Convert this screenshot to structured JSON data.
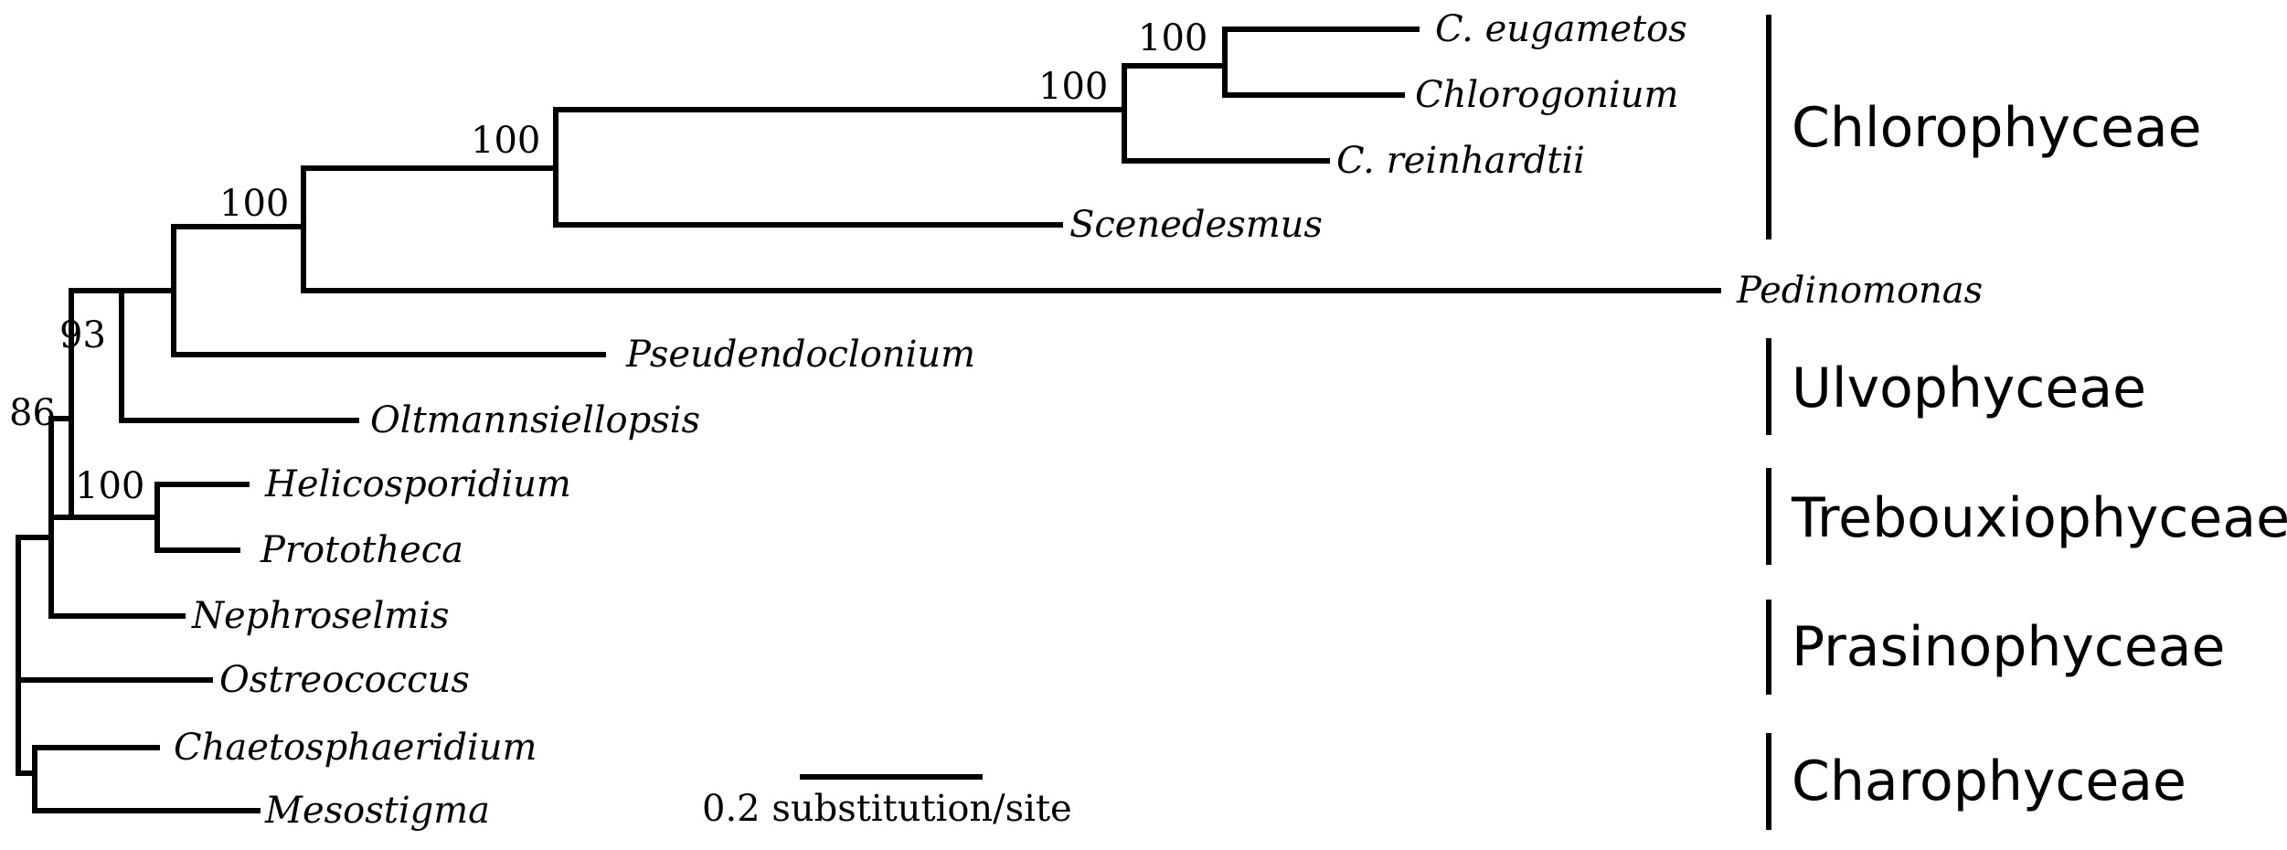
{
  "taxa": {
    "c_eugametos": "C. eugametos",
    "chlorogonium": "Chlorogonium",
    "c_reinhardtii": "C. reinhardtii",
    "scenedesmus": "Scenedesmus",
    "pedinomonas": "Pedinomonas",
    "pseudendoclonium": "Pseudendoclonium",
    "oltmannsiellopsis": "Oltmannsiellopsis",
    "helicosporidium": "Helicosporidium",
    "prototheca": "Prototheca",
    "nephroselmis": "Nephroselmis",
    "ostreococcus": "Ostreococcus",
    "chaetosphaeridium": "Chaetosphaeridium",
    "mesostigma": "Mesostigma"
  },
  "bootstrap": {
    "eug_chl": "100",
    "chlamy": "100",
    "scen": "100",
    "chloro": "100",
    "ulvo_chloro": "93",
    "core": "86",
    "trebo": "100"
  },
  "clades": {
    "chlorophyceae": "Chlorophyceae",
    "ulvophyceae": "Ulvophyceae",
    "trebouxiophyceae": "Trebouxiophyceae",
    "prasinophyceae": "Prasinophyceae",
    "charophyceae": "Charophyceae"
  },
  "scale": {
    "label": "0.2 substitution/site"
  }
}
